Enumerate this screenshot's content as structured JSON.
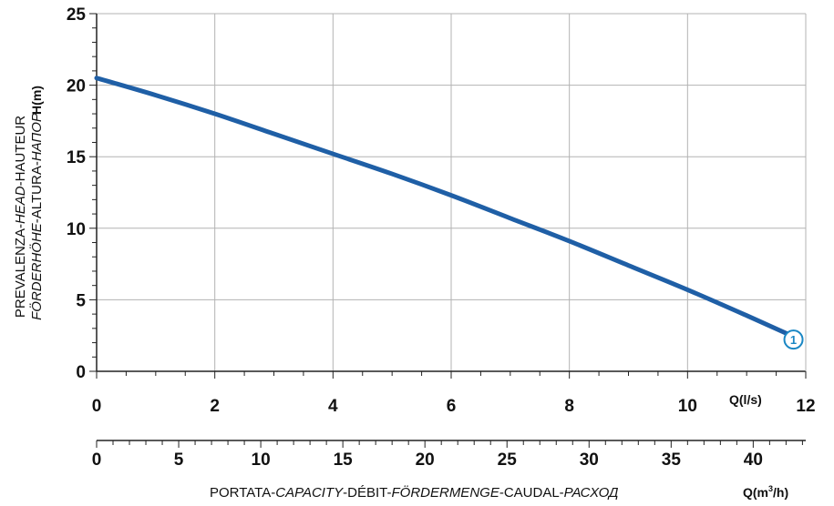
{
  "chart_data": {
    "type": "line",
    "ylabel_line1_parts": [
      "PREVALENZA-",
      "HEAD",
      "-HAUTEUR"
    ],
    "ylabel_line2_parts": [
      "FÖRDERHÖHE",
      "-ALTURA-",
      "НАПОР"
    ],
    "y_unit": "H(m)",
    "x_unit": "Q(l/s)",
    "x2_unit_base": "Q(m",
    "x2_unit_sup": "3",
    "x2_unit_tail": "/h)",
    "xlabel_parts": [
      "PORTATA-",
      "CAPACITY",
      "-DÉBIT-",
      "FÖRDERMENGE",
      "-CAUDAL-",
      "РАСХОД"
    ],
    "x_ticks": [
      "0",
      "2",
      "4",
      "6",
      "8",
      "10",
      "12"
    ],
    "x_range": [
      0,
      12
    ],
    "y_ticks": [
      "0",
      "5",
      "10",
      "15",
      "20",
      "25"
    ],
    "y_range": [
      0,
      25
    ],
    "x2_ticks": [
      "0",
      "5",
      "10",
      "15",
      "20",
      "25",
      "30",
      "35",
      "40"
    ],
    "x2_range_m3h": [
      0,
      43.2
    ],
    "grid": true,
    "series": [
      {
        "label": "1",
        "color": "#1f5fa6",
        "x": [
          0,
          1,
          2,
          3,
          4,
          5,
          6,
          7,
          8,
          9,
          10,
          11,
          11.7
        ],
        "y": [
          20.5,
          19.3,
          18.0,
          16.6,
          15.2,
          13.8,
          12.3,
          10.7,
          9.1,
          7.4,
          5.7,
          3.9,
          2.6
        ]
      }
    ]
  }
}
